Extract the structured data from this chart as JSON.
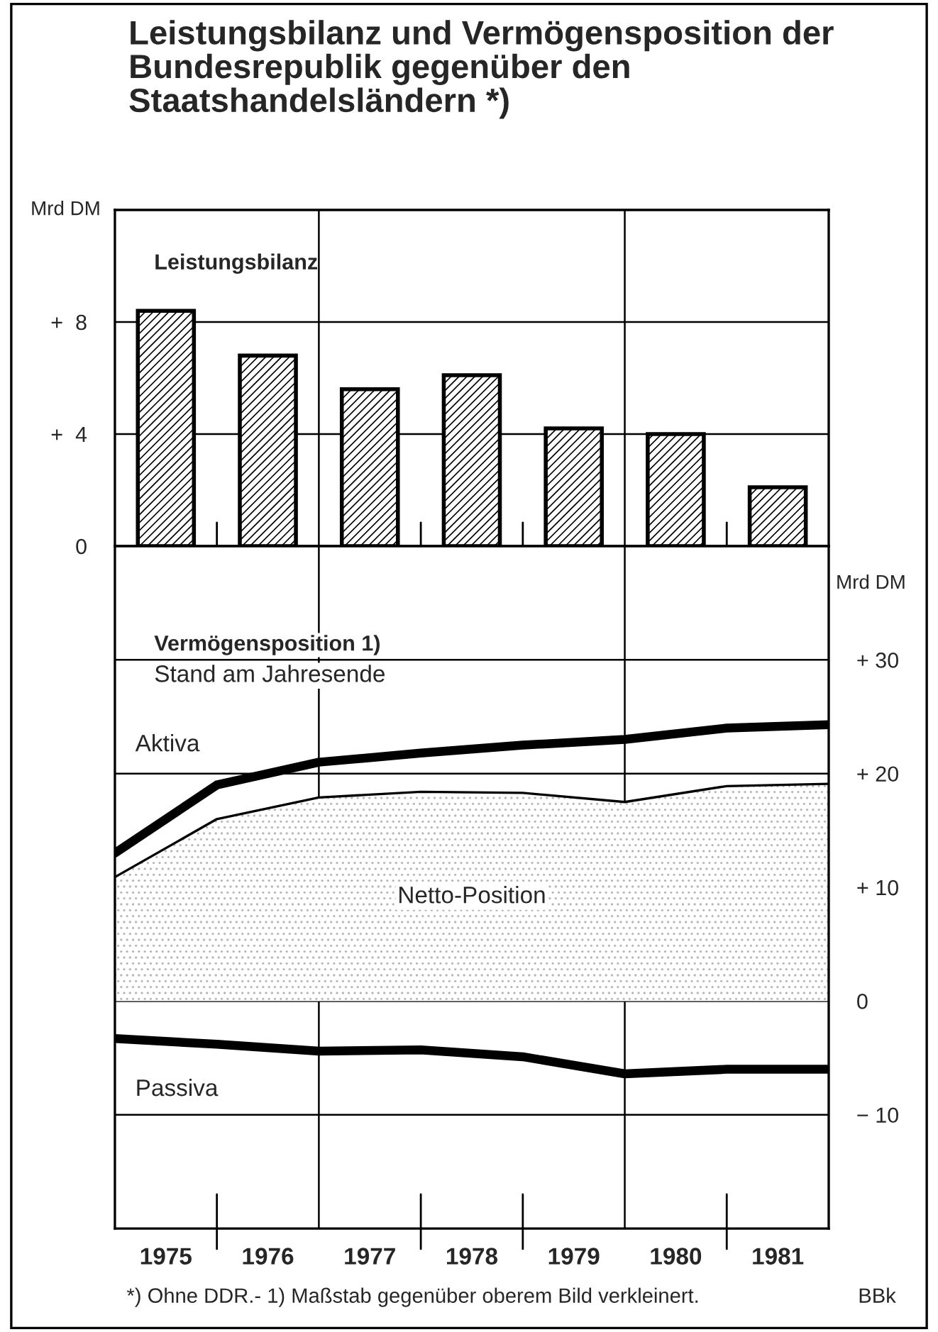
{
  "chart_data": [
    {
      "type": "bar",
      "title": "Leistungsbilanz und Vermögensposition der Bundesrepublik gegenüber den Staatshandelsländern *)",
      "subtitle": "Leistungsbilanz",
      "ylabel": "Mrd DM",
      "x": [
        1975.5,
        1976.5,
        1977.5,
        1978.5,
        1979.5,
        1980.5,
        1981.5
      ],
      "series": [
        {
          "color": "#000000",
          "values": [
            8.4,
            6.8,
            5.6,
            6.1,
            4.2,
            4.0,
            2.1
          ]
        }
      ],
      "xlim": [
        1975,
        1982
      ],
      "ylim": [
        0,
        12
      ],
      "yticks": [
        {
          "value": 0,
          "label": "0"
        },
        {
          "value": 4,
          "label": "+  4"
        },
        {
          "value": 8,
          "label": "+  8"
        }
      ],
      "ref_lines": [
        {
          "axis": "x",
          "value": 1977
        },
        {
          "axis": "x",
          "value": 1980
        }
      ],
      "grid": "y",
      "tick_labels": "y",
      "legend": false
    },
    {
      "type": "line",
      "title": "Vermögensposition 1)",
      "subtitle": "Stand am Jahresende",
      "ylabel": "Mrd DM",
      "x": [
        1975,
        1976,
        1977,
        1978,
        1979,
        1980,
        1981,
        1982
      ],
      "series": [
        {
          "name": "Aktiva",
          "type": "line",
          "color": "#000000",
          "values": [
            13.0,
            19.0,
            21.0,
            21.8,
            22.5,
            23.0,
            24.0,
            24.3
          ]
        },
        {
          "name": "Netto-Position",
          "type": "area",
          "color": "#b8b8b8",
          "values": [
            10.9,
            16.0,
            17.9,
            18.4,
            18.3,
            17.5,
            18.9,
            19.1
          ]
        },
        {
          "name": "Passiva",
          "type": "line",
          "color": "#000000",
          "values": [
            -3.3,
            -3.8,
            -4.4,
            -4.3,
            -4.9,
            -6.4,
            -6.0,
            -6.0
          ]
        }
      ],
      "xlim": [
        1975,
        1982
      ],
      "xticks": [
        {
          "value": 1975.5,
          "label": "1975"
        },
        {
          "value": 1976.5,
          "label": "1976"
        },
        {
          "value": 1977.5,
          "label": "1977"
        },
        {
          "value": 1978.5,
          "label": "1978"
        },
        {
          "value": 1979.5,
          "label": "1979"
        },
        {
          "value": 1980.5,
          "label": "1980"
        },
        {
          "value": 1981.5,
          "label": "1981"
        }
      ],
      "ylim": [
        -20,
        40
      ],
      "yticks": [
        {
          "value": -10,
          "label": "− 10"
        },
        {
          "value": 0,
          "label": "0"
        },
        {
          "value": 10,
          "label": "+ 10"
        },
        {
          "value": 20,
          "label": "+ 20"
        },
        {
          "value": 30,
          "label": "+ 30"
        }
      ],
      "ref_lines": [
        {
          "axis": "x",
          "value": 1977
        },
        {
          "axis": "x",
          "value": 1980
        }
      ],
      "grid": "y",
      "legend": false,
      "line_style": "solid",
      "marker": "none",
      "annotations": [
        "*) Ohne DDR.- 1) Maßstab gegenüber oberem Bild verkleinert.",
        "BBk"
      ]
    }
  ]
}
